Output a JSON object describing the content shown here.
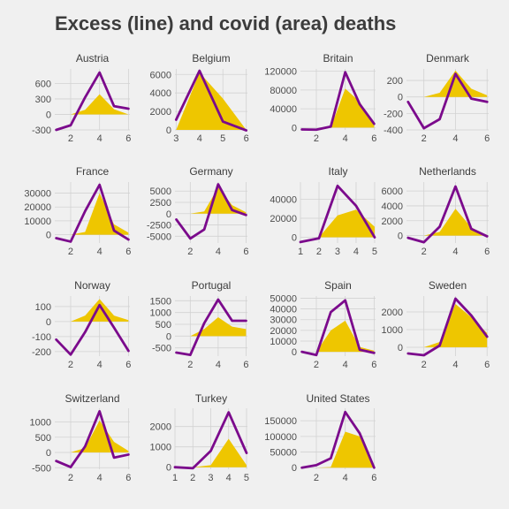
{
  "title": "Excess (line) and covid (area) deaths",
  "colors": {
    "background": "#f0f0f0",
    "excess_line": "#7b0a8c",
    "covid_area": "#eec600",
    "grid": "#d2d2d2",
    "text": "#3c3c3c"
  },
  "chart_data": [
    {
      "type": "line",
      "title": "Austria",
      "x": [
        1,
        2,
        3,
        4,
        5,
        6
      ],
      "series": [
        {
          "values": [
            -300,
            -210,
            330,
            810,
            160,
            110
          ]
        },
        {
          "values": [
            0,
            0,
            90,
            390,
            100,
            0
          ]
        }
      ],
      "xlim": [
        0.9,
        6.1
      ],
      "ylim": [
        -300,
        880
      ],
      "xticks": [
        2,
        4,
        6
      ],
      "yticks": [
        -300,
        0,
        300,
        600
      ],
      "ytick_labels": [
        "-300",
        "0",
        "300",
        "600"
      ]
    },
    {
      "type": "line",
      "title": "Belgium",
      "x": [
        3,
        4,
        5,
        6
      ],
      "series": [
        {
          "values": [
            1100,
            6400,
            900,
            -50
          ]
        },
        {
          "values": [
            0,
            6200,
            3400,
            0
          ]
        }
      ],
      "xlim": [
        2.95,
        6.05
      ],
      "ylim": [
        0,
        6600
      ],
      "xticks": [
        3,
        4,
        5,
        6
      ],
      "yticks": [
        0,
        2000,
        4000,
        6000
      ],
      "ytick_labels": [
        "0",
        "2000",
        "4000",
        "6000"
      ]
    },
    {
      "type": "line",
      "title": "Britain",
      "x": [
        1,
        2,
        3,
        4,
        5,
        6
      ],
      "series": [
        {
          "values": [
            -4000,
            -4500,
            2000,
            118000,
            50000,
            8000
          ]
        },
        {
          "values": [
            0,
            0,
            0,
            83000,
            55000,
            6000
          ]
        }
      ],
      "xlim": [
        0.9,
        6.1
      ],
      "ylim": [
        -5000,
        125000
      ],
      "xticks": [
        2,
        4,
        6
      ],
      "yticks": [
        0,
        40000,
        80000,
        120000
      ],
      "ytick_labels": [
        "0",
        "40000",
        "80000",
        "120000"
      ]
    },
    {
      "type": "line",
      "title": "Denmark",
      "x": [
        1,
        2,
        3,
        4,
        5,
        6
      ],
      "series": [
        {
          "values": [
            -60,
            -380,
            -270,
            280,
            -20,
            -60
          ]
        },
        {
          "values": [
            0,
            0,
            50,
            320,
            100,
            20
          ]
        }
      ],
      "xlim": [
        0.9,
        6.1
      ],
      "ylim": [
        -400,
        340
      ],
      "xticks": [
        2,
        4,
        6
      ],
      "yticks": [
        -400,
        -200,
        0,
        200
      ],
      "ytick_labels": [
        "-400",
        "-200",
        "0",
        "200"
      ]
    },
    {
      "type": "line",
      "title": "France",
      "x": [
        1,
        2,
        3,
        4,
        5,
        6
      ],
      "series": [
        {
          "values": [
            -2500,
            -5000,
            17000,
            36000,
            3000,
            -3500
          ]
        },
        {
          "values": [
            0,
            0,
            2000,
            30000,
            7500,
            1500
          ]
        }
      ],
      "xlim": [
        0.9,
        6.1
      ],
      "ylim": [
        -6000,
        38000
      ],
      "xticks": [
        2,
        4,
        6
      ],
      "yticks": [
        0,
        10000,
        20000,
        30000
      ],
      "ytick_labels": [
        "0",
        "10000",
        "20000",
        "30000"
      ]
    },
    {
      "type": "line",
      "title": "Germany",
      "x": [
        1,
        2,
        3,
        4,
        5,
        6
      ],
      "series": [
        {
          "values": [
            -1300,
            -5500,
            -3500,
            6500,
            800,
            -300
          ]
        },
        {
          "values": [
            0,
            0,
            500,
            5800,
            1900,
            300
          ]
        }
      ],
      "xlim": [
        0.9,
        6.1
      ],
      "ylim": [
        -6500,
        7000
      ],
      "xticks": [
        2,
        4,
        6
      ],
      "yticks": [
        -5000,
        -2500,
        0,
        2500,
        5000
      ],
      "ytick_labels": [
        "-5000",
        "-2500",
        "0",
        "2500",
        "5000"
      ]
    },
    {
      "type": "line",
      "title": "Italy",
      "x": [
        1,
        2,
        3,
        4,
        5
      ],
      "series": [
        {
          "values": [
            -5000,
            -1000,
            54000,
            33000,
            0
          ]
        },
        {
          "values": [
            0,
            0,
            23000,
            29000,
            11000
          ]
        }
      ],
      "xlim": [
        1,
        5.05
      ],
      "ylim": [
        -6000,
        58000
      ],
      "xticks": [
        1,
        2,
        3,
        4,
        5
      ],
      "yticks": [
        0,
        20000,
        40000
      ],
      "ytick_labels": [
        "0",
        "20000",
        "40000"
      ]
    },
    {
      "type": "line",
      "title": "Netherlands",
      "x": [
        1,
        2,
        3,
        4,
        5,
        6
      ],
      "series": [
        {
          "values": [
            -300,
            -900,
            1200,
            6600,
            900,
            -100
          ]
        },
        {
          "values": [
            0,
            0,
            500,
            3600,
            1100,
            0
          ]
        }
      ],
      "xlim": [
        0.9,
        6.1
      ],
      "ylim": [
        -1000,
        7200
      ],
      "xticks": [
        2,
        4,
        6
      ],
      "yticks": [
        0,
        2000,
        4000,
        6000
      ],
      "ytick_labels": [
        "0",
        "2000",
        "4000",
        "6000"
      ]
    },
    {
      "type": "line",
      "title": "Norway",
      "x": [
        1,
        2,
        3,
        4,
        5,
        6
      ],
      "series": [
        {
          "values": [
            -120,
            -220,
            -70,
            110,
            -40,
            -195
          ]
        },
        {
          "values": [
            0,
            0,
            40,
            150,
            40,
            10
          ]
        }
      ],
      "xlim": [
        0.9,
        6.1
      ],
      "ylim": [
        -230,
        170
      ],
      "xticks": [
        2,
        4,
        6
      ],
      "yticks": [
        -200,
        -100,
        0,
        100
      ],
      "ytick_labels": [
        "-200",
        "-100",
        "0",
        "100"
      ]
    },
    {
      "type": "line",
      "title": "Portugal",
      "x": [
        1,
        2,
        3,
        4,
        5,
        6
      ],
      "series": [
        {
          "values": [
            -700,
            -800,
            550,
            1550,
            650,
            650
          ]
        },
        {
          "values": [
            0,
            0,
            300,
            800,
            400,
            300
          ]
        }
      ],
      "xlim": [
        0.9,
        6.1
      ],
      "ylim": [
        -850,
        1700
      ],
      "xticks": [
        2,
        4,
        6
      ],
      "yticks": [
        -500,
        0,
        500,
        1000,
        1500
      ],
      "ytick_labels": [
        "-500",
        "0",
        "500",
        "1000",
        "1500"
      ]
    },
    {
      "type": "line",
      "title": "Spain",
      "x": [
        1,
        2,
        3,
        4,
        5,
        6
      ],
      "series": [
        {
          "values": [
            0,
            -3000,
            37000,
            48000,
            2000,
            -1000
          ]
        },
        {
          "values": [
            0,
            0,
            20000,
            29000,
            4500,
            1000
          ]
        }
      ],
      "xlim": [
        0.9,
        6.1
      ],
      "ylim": [
        -4000,
        52000
      ],
      "xticks": [
        2,
        4,
        6
      ],
      "yticks": [
        0,
        10000,
        20000,
        30000,
        40000,
        50000
      ],
      "ytick_labels": [
        "0",
        "10000",
        "20000",
        "30000",
        "40000",
        "50000"
      ]
    },
    {
      "type": "line",
      "title": "Sweden",
      "x": [
        1,
        2,
        3,
        4,
        5,
        6
      ],
      "series": [
        {
          "values": [
            -350,
            -450,
            100,
            2750,
            1800,
            600
          ]
        },
        {
          "values": [
            0,
            0,
            300,
            2450,
            1700,
            800
          ]
        }
      ],
      "xlim": [
        0.9,
        6.1
      ],
      "ylim": [
        -500,
        2900
      ],
      "xticks": [
        2,
        4,
        6
      ],
      "yticks": [
        0,
        1000,
        2000
      ],
      "ytick_labels": [
        "0",
        "1000",
        "2000"
      ]
    },
    {
      "type": "line",
      "title": "Switzerland",
      "x": [
        1,
        2,
        3,
        4,
        5,
        6
      ],
      "series": [
        {
          "values": [
            -280,
            -480,
            200,
            1350,
            -170,
            -70
          ]
        },
        {
          "values": [
            0,
            0,
            150,
            1050,
            350,
            50
          ]
        }
      ],
      "xlim": [
        0.9,
        6.1
      ],
      "ylim": [
        -550,
        1450
      ],
      "xticks": [
        2,
        4,
        6
      ],
      "yticks": [
        -500,
        0,
        500,
        1000
      ],
      "ytick_labels": [
        "-500",
        "0",
        "500",
        "1000"
      ]
    },
    {
      "type": "line",
      "title": "Turkey",
      "x": [
        1,
        2,
        3,
        4,
        5
      ],
      "series": [
        {
          "values": [
            0,
            -50,
            800,
            2700,
            700
          ]
        },
        {
          "values": [
            0,
            0,
            100,
            1400,
            100
          ]
        }
      ],
      "xlim": [
        1,
        5.05
      ],
      "ylim": [
        -100,
        2900
      ],
      "xticks": [
        1,
        2,
        3,
        4,
        5
      ],
      "yticks": [
        0,
        1000,
        2000
      ],
      "ytick_labels": [
        "0",
        "1000",
        "2000"
      ]
    },
    {
      "type": "line",
      "title": "United States",
      "x": [
        1,
        2,
        3,
        4,
        5,
        6
      ],
      "series": [
        {
          "values": [
            0,
            8000,
            30000,
            178000,
            110000,
            0
          ]
        },
        {
          "values": [
            0,
            0,
            2000,
            115000,
            100000,
            0
          ]
        }
      ],
      "xlim": [
        0.9,
        6.1
      ],
      "ylim": [
        -5000,
        190000
      ],
      "xticks": [
        2,
        4,
        6
      ],
      "yticks": [
        0,
        50000,
        100000,
        150000
      ],
      "ytick_labels": [
        "0",
        "50000",
        "100000",
        "150000"
      ]
    }
  ]
}
